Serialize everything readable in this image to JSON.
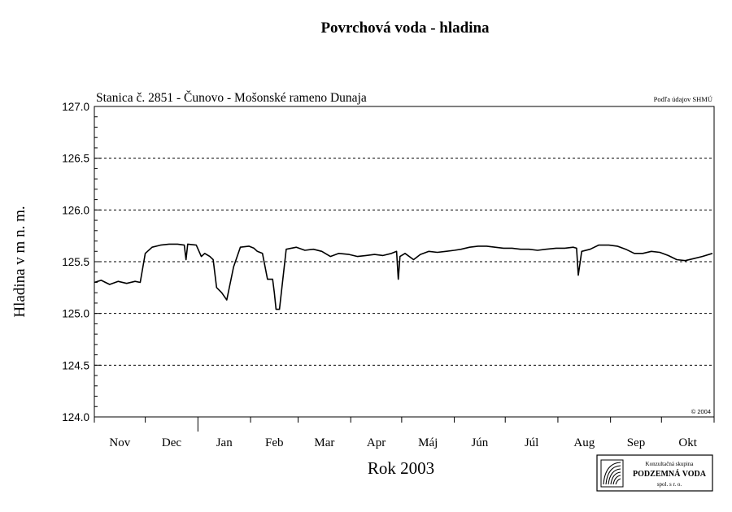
{
  "chart_data": {
    "type": "line",
    "title": "Povrchová voda - hladina",
    "station_label": "Stanica č. 2851 - Čunovo - Mošonské rameno Dunaja",
    "source_note": "Podľa údajov SHMÚ",
    "copyright": "© 2004",
    "ylabel": "Hladina v m n. m.",
    "xlabel": "Rok 2003",
    "ylim": [
      124.0,
      127.0
    ],
    "y_ticks": [
      "124.0",
      "124.5",
      "125.0",
      "125.5",
      "126.0",
      "126.5",
      "127.0"
    ],
    "x_ticks": [
      "Nov",
      "Dec",
      "Jan",
      "Feb",
      "Mar",
      "Apr",
      "Máj",
      "Jún",
      "Júl",
      "Aug",
      "Sep",
      "Okt"
    ],
    "grid": "horizontal dashed at 124.5, 125.0, 125.5, 126.0, 126.5",
    "series": [
      {
        "x": [
          "2002-11-01",
          "2002-11-05",
          "2002-11-10",
          "2002-11-15",
          "2002-11-20",
          "2002-11-25",
          "2002-11-28",
          "2002-12-01",
          "2002-12-05",
          "2002-12-10",
          "2002-12-15",
          "2002-12-20",
          "2002-12-24",
          "2002-12-25",
          "2002-12-26",
          "2002-12-31",
          "2003-01-03",
          "2003-01-05",
          "2003-01-08",
          "2003-01-10",
          "2003-01-12",
          "2003-01-15",
          "2003-01-18",
          "2003-01-22",
          "2003-01-26",
          "2003-01-31",
          "2003-02-03",
          "2003-02-05",
          "2003-02-08",
          "2003-02-11",
          "2003-02-14",
          "2003-02-15",
          "2003-02-16",
          "2003-02-18",
          "2003-02-22",
          "2003-02-28",
          "2003-03-05",
          "2003-03-10",
          "2003-03-15",
          "2003-03-20",
          "2003-03-25",
          "2003-03-31",
          "2003-04-05",
          "2003-04-10",
          "2003-04-15",
          "2003-04-20",
          "2003-04-25",
          "2003-04-28",
          "2003-04-29",
          "2003-04-30",
          "2003-05-03",
          "2003-05-08",
          "2003-05-12",
          "2003-05-17",
          "2003-05-22",
          "2003-05-27",
          "2003-06-01",
          "2003-06-05",
          "2003-06-10",
          "2003-06-15",
          "2003-06-20",
          "2003-06-25",
          "2003-06-30",
          "2003-07-05",
          "2003-07-10",
          "2003-07-15",
          "2003-07-20",
          "2003-07-25",
          "2003-07-31",
          "2003-08-05",
          "2003-08-10",
          "2003-08-12",
          "2003-08-13",
          "2003-08-15",
          "2003-08-20",
          "2003-08-25",
          "2003-08-31",
          "2003-09-05",
          "2003-09-10",
          "2003-09-15",
          "2003-09-20",
          "2003-09-25",
          "2003-09-30",
          "2003-10-05",
          "2003-10-10",
          "2003-10-15",
          "2003-10-20",
          "2003-10-25",
          "2003-10-31"
        ],
        "values": [
          125.3,
          125.32,
          125.28,
          125.31,
          125.29,
          125.31,
          125.3,
          125.58,
          125.64,
          125.66,
          125.67,
          125.67,
          125.66,
          125.52,
          125.67,
          125.66,
          125.55,
          125.58,
          125.55,
          125.52,
          125.25,
          125.2,
          125.13,
          125.45,
          125.64,
          125.65,
          125.63,
          125.6,
          125.58,
          125.33,
          125.33,
          125.2,
          125.04,
          125.04,
          125.62,
          125.64,
          125.61,
          125.62,
          125.6,
          125.55,
          125.58,
          125.57,
          125.55,
          125.56,
          125.57,
          125.56,
          125.58,
          125.6,
          125.33,
          125.55,
          125.58,
          125.52,
          125.57,
          125.6,
          125.59,
          125.6,
          125.61,
          125.62,
          125.64,
          125.65,
          125.65,
          125.64,
          125.63,
          125.63,
          125.62,
          125.62,
          125.61,
          125.62,
          125.63,
          125.63,
          125.64,
          125.63,
          125.37,
          125.6,
          125.62,
          125.66,
          125.66,
          125.65,
          125.62,
          125.58,
          125.58,
          125.6,
          125.59,
          125.56,
          125.52,
          125.51,
          125.53,
          125.55,
          125.58
        ]
      }
    ]
  },
  "logo": {
    "line1": "Konzultačná skupina",
    "line2": "PODZEMNÁ VODA",
    "line3": "spol. s r. o."
  }
}
